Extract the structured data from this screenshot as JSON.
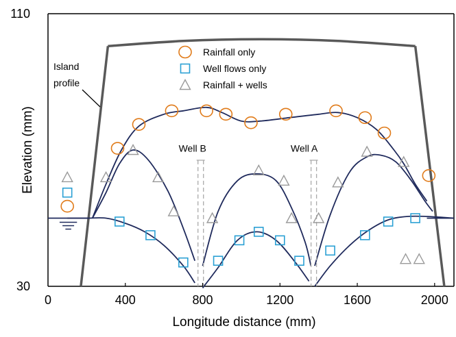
{
  "chart_data": {
    "type": "scatter",
    "xlabel": "Longitude distance (mm)",
    "ylabel": "Elevation (mm)",
    "xlim": [
      0,
      2100
    ],
    "ylim": [
      30,
      110
    ],
    "x_ticks": [
      "0",
      "400",
      "800",
      "1200",
      "1600",
      "2000"
    ],
    "y_ticks": [
      "30",
      "110"
    ],
    "grid": false,
    "legend_position": "top-center",
    "colors": {
      "island": "#595959",
      "curve": "#1f2a5c",
      "rainfall": "#e07b1a",
      "wells_only": "#2aa0d4",
      "rainfall_wells": "#9a9a9a",
      "well_marker": "#aaaaaa",
      "water": "#1f2a5c"
    },
    "annotations": {
      "island_profile": [
        "Island",
        "profile"
      ],
      "well_b": "Well B",
      "well_a": "Well A"
    },
    "wells": [
      {
        "name": "Well B",
        "x": 790
      },
      {
        "name": "Well A",
        "x": 1375
      }
    ],
    "water_level": 50,
    "island_profile": {
      "x": [
        170,
        310,
        700,
        1100,
        1500,
        1900,
        2050
      ],
      "y": [
        30,
        100.5,
        102,
        102.5,
        102,
        100.5,
        30
      ]
    },
    "series": [
      {
        "name": "Rainfall only",
        "marker": "circle",
        "x": [
          100,
          360,
          470,
          640,
          820,
          920,
          1050,
          1230,
          1490,
          1640,
          1740,
          1970
        ],
        "y": [
          53.5,
          70.5,
          77.5,
          81.5,
          81.5,
          80.5,
          78,
          80.5,
          81.5,
          79.5,
          75,
          62.5
        ]
      },
      {
        "name": "Well flows only",
        "marker": "square",
        "x": [
          100,
          370,
          530,
          700,
          880,
          990,
          1090,
          1200,
          1300,
          1460,
          1640,
          1760,
          1900
        ],
        "y": [
          57.5,
          49,
          45,
          37,
          37.5,
          43.5,
          46,
          43.5,
          37.5,
          40.5,
          45,
          49,
          50
        ]
      },
      {
        "name": "Rainfall + wells",
        "marker": "triangle",
        "x": [
          100,
          300,
          440,
          570,
          650,
          850,
          1090,
          1220,
          1260,
          1400,
          1500,
          1650,
          1840,
          1850,
          1920
        ],
        "y": [
          62,
          62,
          70,
          62,
          52,
          50,
          64,
          61,
          50,
          50,
          60.5,
          69.5,
          66.5,
          38,
          38
        ]
      },
      {
        "name": "",
        "role": "rainfall-only-curve",
        "x": [
          230,
          300,
          380,
          470,
          600,
          700,
          820,
          900,
          1000,
          1100,
          1250,
          1400,
          1500,
          1600,
          1700,
          1790,
          1840,
          1900,
          1960
        ],
        "y": [
          50,
          60,
          70,
          77,
          80.5,
          81.5,
          82.5,
          81,
          78.5,
          78.5,
          79.5,
          80.5,
          81,
          79.5,
          76,
          70,
          66,
          60,
          55
        ]
      },
      {
        "name": "",
        "role": "rainfall-wells-curve",
        "x": [
          230,
          300,
          370,
          440,
          520,
          620,
          700,
          760,
          780,
          800,
          880,
          980,
          1080,
          1180,
          1260,
          1330,
          1360,
          1380,
          1460,
          1560,
          1650,
          1720,
          1800,
          1880,
          1950,
          1990
        ],
        "y": [
          50,
          57.5,
          66,
          70,
          67,
          58,
          47,
          37.5,
          36,
          36,
          52,
          61,
          63,
          61,
          53,
          43,
          36,
          36,
          51,
          63.5,
          68,
          68.5,
          66.5,
          61,
          55,
          52
        ]
      },
      {
        "name": "",
        "role": "wells-only-curve",
        "x": [
          100,
          200,
          300,
          400,
          500,
          600,
          700,
          760,
          790,
          800,
          880,
          980,
          1080,
          1180,
          1280,
          1350,
          1375,
          1380,
          1460,
          1560,
          1660,
          1760,
          1860,
          1960,
          2100
        ],
        "y": [
          50,
          50,
          50,
          48.5,
          46,
          42,
          36,
          31,
          29.5,
          29.5,
          35.5,
          43.5,
          46,
          43.5,
          37,
          31.5,
          30,
          30,
          36,
          42,
          46.5,
          49.5,
          50.5,
          50.5,
          50
        ]
      }
    ]
  }
}
